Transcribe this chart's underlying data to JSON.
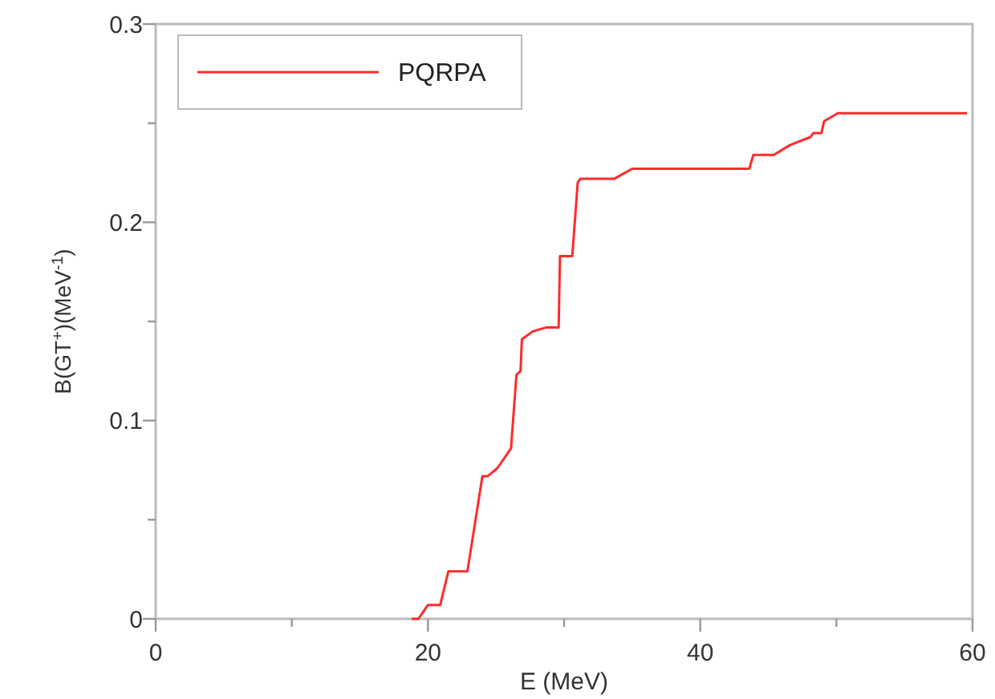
{
  "chart_data": {
    "type": "line",
    "xlabel": "E (MeV)",
    "ylabel": "B(GT$^{+}$)(MeV$^{-1}$)",
    "xlim": [
      0,
      60
    ],
    "ylim": [
      0,
      0.3
    ],
    "xticks": [
      0,
      {
        "value": 10,
        "label": null
      },
      20,
      {
        "value": 30,
        "label": null
      },
      40,
      {
        "value": 50,
        "label": null
      },
      60
    ],
    "yticks": [
      0,
      {
        "value": 0.05,
        "label": null
      },
      0.1,
      {
        "value": 0.15,
        "label": null
      },
      0.2,
      {
        "value": 0.25,
        "label": null
      },
      0.3
    ],
    "grid": false,
    "legend": "top left",
    "marker": "none",
    "line_style": "solid",
    "series": [
      {
        "name": "PQRPA",
        "color": "#ff2a2a",
        "x": [
          18.8,
          19.3,
          20.0,
          20.9,
          21.5,
          22.9,
          24.0,
          24.4,
          25.1,
          26.1,
          26.5,
          26.8,
          26.9,
          27.7,
          28.7,
          29.6,
          29.7,
          30.6,
          31.0,
          31.2,
          33.7,
          35.0,
          38.3,
          43.6,
          43.9,
          45.4,
          46.6,
          48.1,
          48.3,
          48.9,
          49.1,
          50.1,
          59.6
        ],
        "values": [
          0,
          0,
          0.007,
          0.007,
          0.024,
          0.024,
          0.072,
          0.072,
          0.076,
          0.086,
          0.123,
          0.125,
          0.141,
          0.145,
          0.147,
          0.147,
          0.183,
          0.183,
          0.22,
          0.222,
          0.222,
          0.227,
          0.227,
          0.227,
          0.234,
          0.234,
          0.239,
          0.243,
          0.245,
          0.245,
          0.251,
          0.255,
          0.255
        ]
      }
    ]
  }
}
